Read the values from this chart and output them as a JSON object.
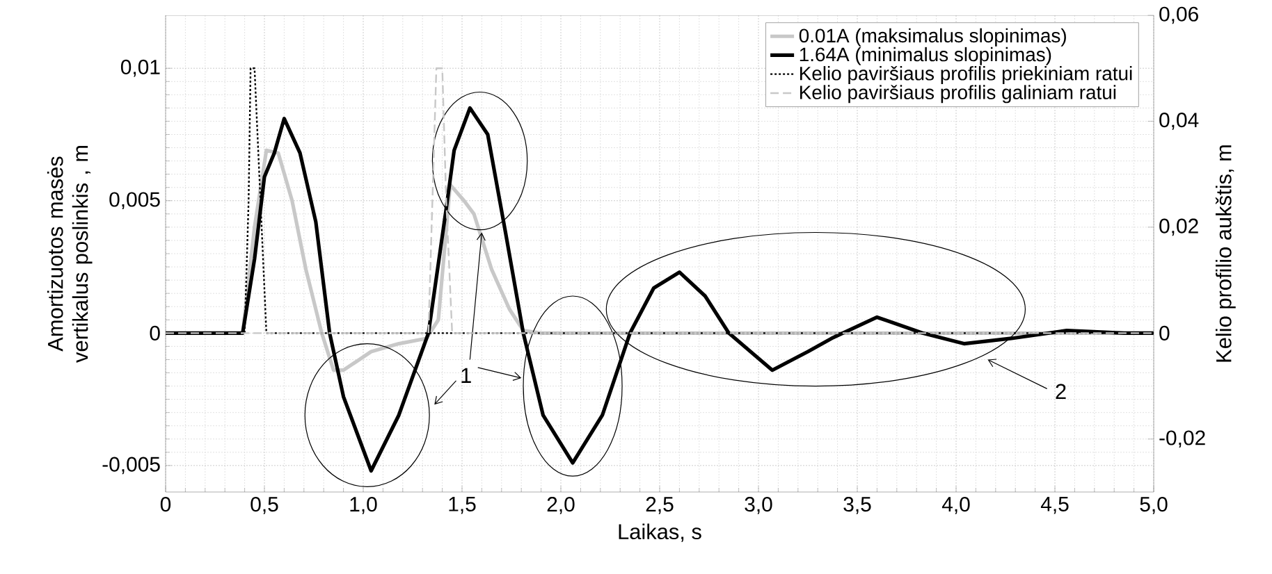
{
  "chart_data": {
    "type": "line",
    "xlabel": "Laikas, s",
    "ylabel": "Amortizuotos masės vertikalus poslinkis , m",
    "y2label": "Kelio profilio aukštis, m",
    "xlim": [
      0,
      5
    ],
    "xticks": [
      0,
      {
        "value": 0.5,
        "label": "0,5"
      },
      {
        "value": 1,
        "label": "1,0"
      },
      {
        "value": 1.5,
        "label": "1,5"
      },
      {
        "value": 2,
        "label": "2,0"
      },
      {
        "value": 2.5,
        "label": "2,5"
      },
      {
        "value": 3,
        "label": "3,0"
      },
      {
        "value": 3.5,
        "label": "3,5"
      },
      {
        "value": 4,
        "label": "4,0"
      },
      {
        "value": 4.5,
        "label": "4,5"
      },
      {
        "value": 5,
        "label": "5,0"
      }
    ],
    "ylim": [
      -0.006,
      0.012
    ],
    "yticks": [
      {
        "value": -0.005,
        "label": "-0,005"
      },
      0,
      {
        "value": 0.005,
        "label": "0,005"
      },
      {
        "value": 0.01,
        "label": "0,01"
      }
    ],
    "y2lim": [
      -0.03,
      0.06
    ],
    "y2ticks": [
      {
        "value": -0.02,
        "label": "-0,02"
      },
      0,
      {
        "value": 0.02,
        "label": "0,02"
      },
      {
        "value": 0.04,
        "label": "0,04"
      },
      {
        "value": 0.06,
        "label": "0,06"
      }
    ],
    "grid": true,
    "legend": "top right",
    "series": [
      {
        "name": "0.01A (maksimalus slopinimas)",
        "color": "#c8c8c8",
        "line_style": "solid",
        "x": [
          0,
          0.39,
          0.45,
          0.51,
          0.57,
          0.64,
          0.71,
          0.79,
          0.85,
          0.9,
          1.04,
          1.18,
          1.32,
          1.38,
          1.44,
          1.51,
          1.56,
          1.65,
          1.74,
          1.81,
          1.9,
          5
        ],
        "values": [
          0,
          0,
          0.004,
          0.0069,
          0.0068,
          0.005,
          0.0024,
          0,
          -0.0014,
          -0.0014,
          -0.0007,
          -0.0004,
          -0.0002,
          0.0005,
          0.0056,
          0.005,
          0.0045,
          0.0024,
          0.0009,
          0.0001,
          0,
          0
        ]
      },
      {
        "name": "1.64A (minimalus slopinimas)",
        "color": "#000000",
        "line_style": "solid",
        "x": [
          0,
          0.39,
          0.45,
          0.5,
          0.55,
          0.6,
          0.68,
          0.76,
          0.83,
          0.9,
          1.04,
          1.18,
          1.33,
          1.42,
          1.46,
          1.54,
          1.63,
          1.72,
          1.81,
          1.91,
          2.06,
          2.21,
          2.35,
          2.47,
          2.6,
          2.73,
          2.85,
          3.07,
          3.25,
          3.37,
          3.6,
          3.83,
          4.04,
          4.28,
          4.56,
          4.85,
          5
        ],
        "values": [
          0,
          0,
          0.0028,
          0.0059,
          0.0068,
          0.0081,
          0.0068,
          0.0042,
          0,
          -0.0024,
          -0.0052,
          -0.0031,
          0,
          0.0047,
          0.0069,
          0.0085,
          0.0075,
          0.0038,
          0,
          -0.0031,
          -0.0049,
          -0.0031,
          0,
          0.0017,
          0.0023,
          0.0014,
          0,
          -0.0014,
          -0.0007,
          -0.0002,
          0.0006,
          0,
          -0.0004,
          -0.0002,
          0.0001,
          0,
          0
        ]
      },
      {
        "name": "Kelio paviršiaus profilis priekiniam ratui",
        "color": "#000000",
        "line_style": "dotted",
        "axis": "y2",
        "x": [
          0,
          0.4,
          0.42,
          0.43,
          0.45,
          0.48,
          0.51,
          5
        ],
        "values": [
          0,
          0,
          0.025,
          0.05,
          0.05,
          0.025,
          0,
          0
        ]
      },
      {
        "name": "Kelio paviršiaus profilis galiniam ratui",
        "color": "#c8c8c8",
        "line_style": "dashed",
        "axis": "y2",
        "x": [
          0,
          1.33,
          1.35,
          1.37,
          1.4,
          1.42,
          1.45,
          5
        ],
        "values": [
          0,
          0,
          0.025,
          0.05,
          0.05,
          0.025,
          0,
          0
        ]
      }
    ],
    "annotations": [
      {
        "text": "1",
        "x": 1.6,
        "y": 0.0038
      },
      "2"
    ]
  }
}
